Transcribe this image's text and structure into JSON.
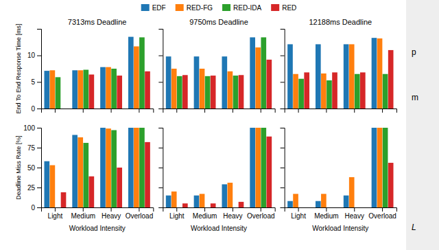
{
  "chart_data": [
    {
      "type": "bar",
      "title": "7313ms Deadline",
      "ylabel": "End To End Response Time [ms]",
      "categories": [
        null,
        null,
        null,
        null
      ],
      "series": [
        {
          "name": "EDF",
          "values": [
            7.1,
            7.2,
            7.8,
            13.5
          ]
        },
        {
          "name": "RED-FG",
          "values": [
            7.2,
            7.2,
            7.8,
            11.7
          ]
        },
        {
          "name": "RED-IDA",
          "values": [
            5.9,
            7.3,
            7.5,
            13.4
          ]
        },
        {
          "name": "RED",
          "values": [
            0.0,
            6.4,
            6.2,
            7.0
          ]
        }
      ],
      "ylim": [
        0,
        15
      ],
      "yticks": [
        0,
        5,
        10
      ],
      "tick_labels": "y",
      "legend": "top"
    },
    {
      "type": "bar",
      "title": "9750ms Deadline",
      "categories": [
        null,
        null,
        null,
        null
      ],
      "series": [
        {
          "name": "EDF",
          "values": [
            9.8,
            9.8,
            9.8,
            13.4
          ]
        },
        {
          "name": "RED-FG",
          "values": [
            7.5,
            7.5,
            7.0,
            11.5
          ]
        },
        {
          "name": "RED-IDA",
          "values": [
            6.1,
            6.1,
            6.2,
            13.4
          ]
        },
        {
          "name": "RED",
          "values": [
            6.3,
            6.2,
            6.3,
            9.2
          ]
        }
      ],
      "ylim": [
        0,
        15
      ],
      "yticks": [
        0,
        5,
        10
      ],
      "tick_labels": false
    },
    {
      "type": "bar",
      "title": "12188ms Deadline",
      "categories": [
        null,
        null,
        null,
        null
      ],
      "series": [
        {
          "name": "EDF",
          "values": [
            12.1,
            12.1,
            12.1,
            13.3
          ]
        },
        {
          "name": "RED-FG",
          "values": [
            6.5,
            6.6,
            12.1,
            13.2
          ]
        },
        {
          "name": "RED-IDA",
          "values": [
            5.6,
            5.3,
            6.5,
            6.5
          ]
        },
        {
          "name": "RED",
          "values": [
            6.8,
            6.8,
            6.8,
            11.0
          ]
        }
      ],
      "ylim": [
        0,
        15
      ],
      "yticks": [
        0,
        5,
        10
      ],
      "tick_labels": false,
      "annotations": [
        "p",
        "m",
        "L"
      ]
    },
    {
      "type": "bar",
      "xlabel": "Workload Intensity",
      "ylabel": "Deadline Miss Rate [%]",
      "categories": [
        "Light",
        "Medium",
        "Heavy",
        "Overload"
      ],
      "series": [
        {
          "name": "EDF",
          "values": [
            58,
            91,
            100,
            100
          ]
        },
        {
          "name": "RED-FG",
          "values": [
            53,
            88,
            99,
            100
          ]
        },
        {
          "name": "RED-IDA",
          "values": [
            0,
            81,
            97,
            100
          ]
        },
        {
          "name": "RED",
          "values": [
            19,
            39,
            50,
            82
          ]
        }
      ],
      "ylim": [
        0,
        100
      ],
      "yticks": [
        0,
        25,
        50,
        75,
        100
      ]
    },
    {
      "type": "bar",
      "xlabel": "Workload Intensity",
      "categories": [
        "Light",
        "Medium",
        "Heavy",
        "Overload"
      ],
      "series": [
        {
          "name": "EDF",
          "values": [
            15,
            15,
            29,
            100
          ]
        },
        {
          "name": "RED-FG",
          "values": [
            20,
            17,
            31,
            100
          ]
        },
        {
          "name": "RED-IDA",
          "values": [
            0,
            0,
            0,
            100
          ]
        },
        {
          "name": "RED",
          "values": [
            5,
            5,
            7,
            89
          ]
        }
      ],
      "ylim": [
        0,
        100
      ],
      "yticks": [
        0,
        25,
        50,
        75,
        100
      ],
      "tick_labels": "x"
    },
    {
      "type": "bar",
      "xlabel": "Workload Intensity",
      "categories": [
        "Light",
        "Medium",
        "Heavy",
        "Overload"
      ],
      "series": [
        {
          "name": "EDF",
          "values": [
            8,
            8,
            15,
            100
          ]
        },
        {
          "name": "RED-FG",
          "values": [
            17,
            17,
            38,
            100
          ]
        },
        {
          "name": "RED-IDA",
          "values": [
            0,
            0,
            0,
            100
          ]
        },
        {
          "name": "RED",
          "values": [
            0,
            0,
            0,
            56
          ]
        }
      ],
      "ylim": [
        0,
        100
      ],
      "yticks": [
        0,
        25,
        50,
        75,
        100
      ],
      "tick_labels": "x"
    }
  ]
}
